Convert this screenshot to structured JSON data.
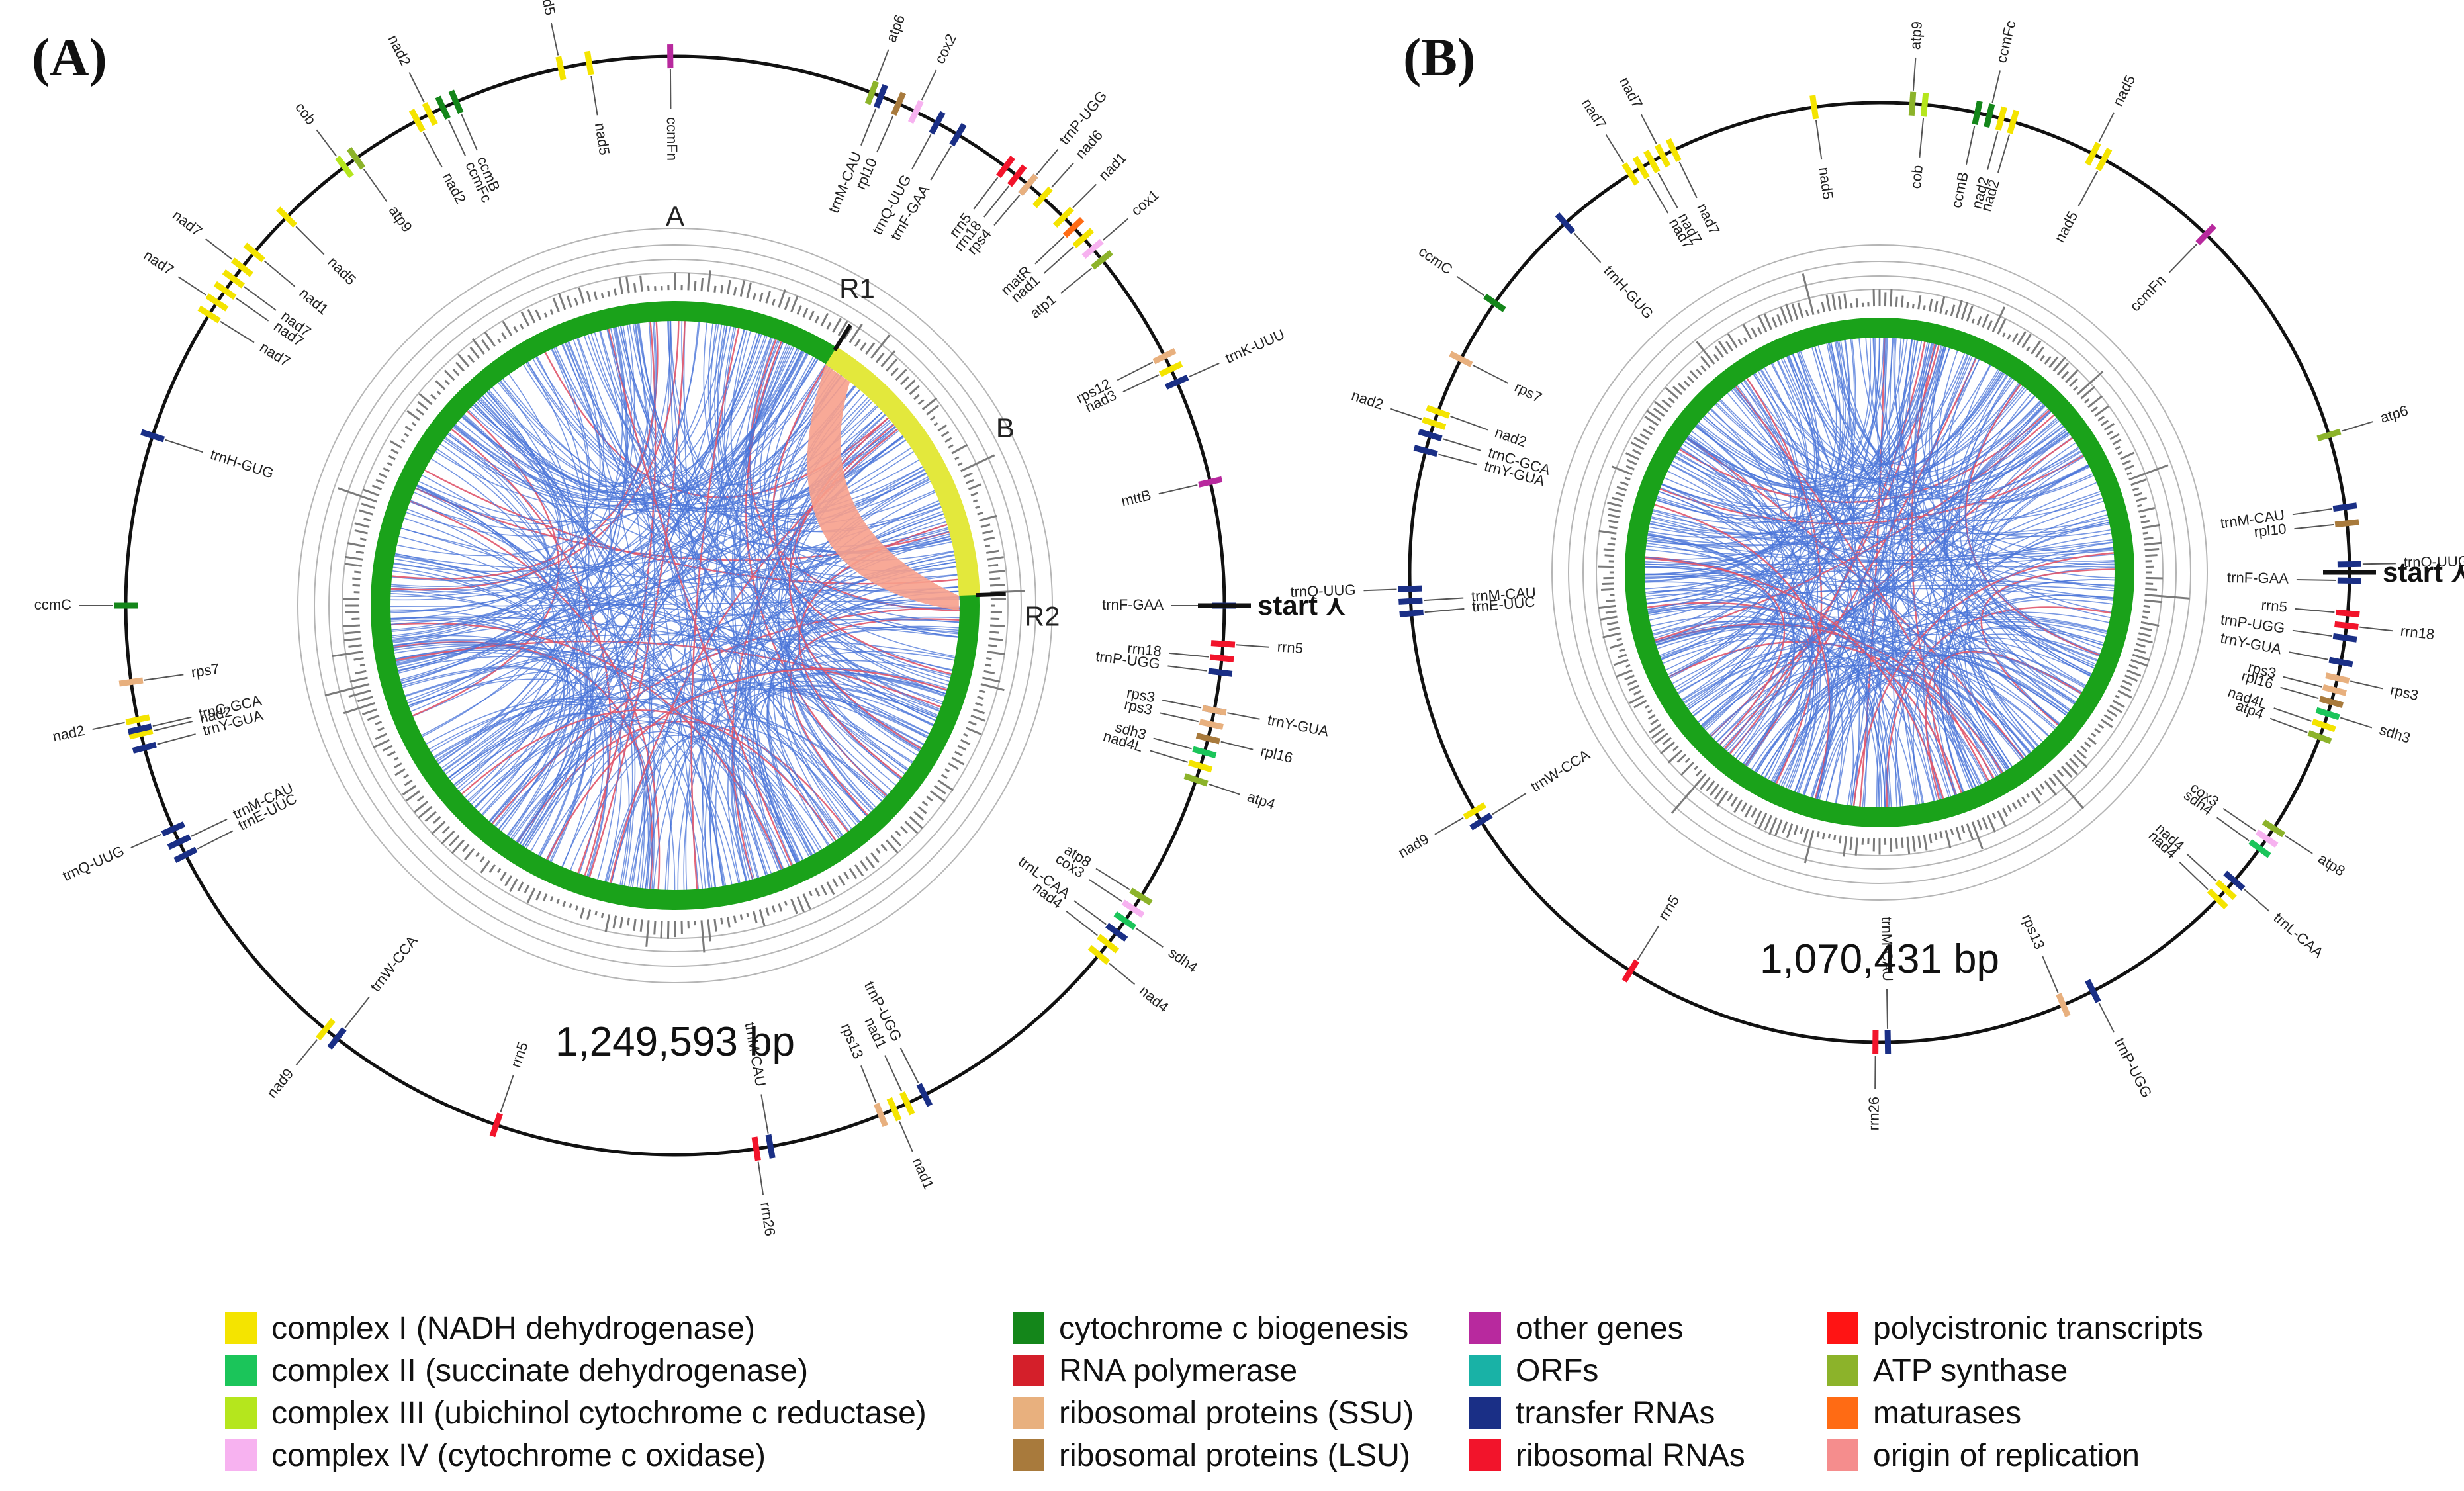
{
  "panels": [
    {
      "label": "(A)",
      "size_label": "1,249,593 bp",
      "start_label": "start",
      "start_glyph": "⋏",
      "region_labels": [
        "A",
        "B",
        "R1",
        "R2"
      ],
      "genes": [
        {
          "name": "nad5",
          "angle": -12,
          "cat": "complexI"
        },
        {
          "name": "nad5",
          "angle": -9,
          "cat": "complexI"
        },
        {
          "name": "ccmFn",
          "angle": -0.5,
          "cat": "other"
        },
        {
          "name": "atp6",
          "angle": 21,
          "cat": "atp"
        },
        {
          "name": "rrn5",
          "angle": 37,
          "cat": "rrna"
        },
        {
          "name": "rrn18",
          "angle": 38.5,
          "cat": "rrna"
        },
        {
          "name": "trnP-UGG",
          "angle": 40,
          "cat": "trna"
        },
        {
          "name": "trnM-CAU",
          "angle": 22,
          "cat": "trna"
        },
        {
          "name": "rpl10",
          "angle": 24,
          "cat": "rpl"
        },
        {
          "name": "cox2",
          "angle": 26,
          "cat": "complexIV"
        },
        {
          "name": "trnQ-UUG",
          "angle": 28.5,
          "cat": "trna"
        },
        {
          "name": "trnF-GAA",
          "angle": 31,
          "cat": "trna"
        },
        {
          "name": "nad1",
          "angle": 45,
          "cat": "complexI"
        },
        {
          "name": "matR",
          "angle": 46.5,
          "cat": "maturase"
        },
        {
          "name": "nad1",
          "angle": 48,
          "cat": "complexI"
        },
        {
          "name": "cox1",
          "angle": 49.5,
          "cat": "complexIV"
        },
        {
          "name": "atp1",
          "angle": 51,
          "cat": "atp"
        },
        {
          "name": "rps4",
          "angle": 40,
          "cat": "rps"
        },
        {
          "name": "nad6",
          "angle": 42,
          "cat": "complexI"
        },
        {
          "name": "rps12",
          "angle": 63,
          "cat": "rps"
        },
        {
          "name": "nad3",
          "angle": 64.5,
          "cat": "complexI"
        },
        {
          "name": "trnK-UUU",
          "angle": 66,
          "cat": "trna"
        },
        {
          "name": "mttB",
          "angle": 77,
          "cat": "other"
        },
        {
          "name": "trnF-GAA",
          "angle": 90,
          "cat": "trna"
        },
        {
          "name": "rrn5",
          "angle": 94,
          "cat": "rrna"
        },
        {
          "name": "rrn18",
          "angle": 95.5,
          "cat": "rrna"
        },
        {
          "name": "trnP-UGG",
          "angle": 97,
          "cat": "trna"
        },
        {
          "name": "trnY-GUA",
          "angle": 101,
          "cat": "trna"
        },
        {
          "name": "rps3",
          "angle": 101,
          "cat": "rps"
        },
        {
          "name": "rps3",
          "angle": 102.5,
          "cat": "rps"
        },
        {
          "name": "rpl16",
          "angle": 104,
          "cat": "rpl"
        },
        {
          "name": "sdh3",
          "angle": 105.5,
          "cat": "complexII"
        },
        {
          "name": "nad4L",
          "angle": 107,
          "cat": "complexI"
        },
        {
          "name": "atp4",
          "angle": 108.5,
          "cat": "atp"
        },
        {
          "name": "atp8",
          "angle": 122,
          "cat": "atp"
        },
        {
          "name": "cox3",
          "angle": 123.5,
          "cat": "complexIV"
        },
        {
          "name": "sdh4",
          "angle": 125,
          "cat": "complexII"
        },
        {
          "name": "trnL-CAA",
          "angle": 126.5,
          "cat": "trna"
        },
        {
          "name": "nad4",
          "angle": 128,
          "cat": "complexI"
        },
        {
          "name": "nad4",
          "angle": 129.5,
          "cat": "complexI"
        },
        {
          "name": "trnP-UGG",
          "angle": 153,
          "cat": "trna"
        },
        {
          "name": "nad1",
          "angle": 155,
          "cat": "complexI"
        },
        {
          "name": "nad1",
          "angle": 156.5,
          "cat": "complexI"
        },
        {
          "name": "rps13",
          "angle": 158,
          "cat": "rps"
        },
        {
          "name": "trnM-CAU",
          "angle": 170,
          "cat": "trna"
        },
        {
          "name": "rrn26",
          "angle": 171.5,
          "cat": "rrna"
        },
        {
          "name": "rrn5",
          "angle": 199,
          "cat": "rrna"
        },
        {
          "name": "trnW-CCA",
          "angle": 218,
          "cat": "trna"
        },
        {
          "name": "nad9",
          "angle": 219.5,
          "cat": "complexI"
        },
        {
          "name": "trnE-UUC",
          "angle": 243,
          "cat": "trna"
        },
        {
          "name": "trnM-CAU",
          "angle": 244.5,
          "cat": "trna"
        },
        {
          "name": "trnQ-UUG",
          "angle": 246,
          "cat": "trna"
        },
        {
          "name": "trnY-GUA",
          "angle": 255,
          "cat": "trna"
        },
        {
          "name": "nad2",
          "angle": 256.5,
          "cat": "complexI"
        },
        {
          "name": "nad2",
          "angle": 258,
          "cat": "complexI"
        },
        {
          "name": "trnC-GCA",
          "angle": 257,
          "cat": "trna"
        },
        {
          "name": "rps7",
          "angle": 262,
          "cat": "rps"
        },
        {
          "name": "ccmC",
          "angle": 270,
          "cat": "ccm"
        },
        {
          "name": "trnH-GUG",
          "angle": 288,
          "cat": "trna"
        },
        {
          "name": "nad7",
          "angle": 302,
          "cat": "complexI"
        },
        {
          "name": "nad7",
          "angle": 303.5,
          "cat": "complexI"
        },
        {
          "name": "nad7",
          "angle": 305,
          "cat": "complexI"
        },
        {
          "name": "nad7",
          "angle": 306.5,
          "cat": "complexI"
        },
        {
          "name": "nad7",
          "angle": 308,
          "cat": "complexI"
        },
        {
          "name": "nad1",
          "angle": 310,
          "cat": "complexI"
        },
        {
          "name": "nad5",
          "angle": 315,
          "cat": "complexI"
        },
        {
          "name": "cob",
          "angle": 323,
          "cat": "complexIII"
        },
        {
          "name": "atp9",
          "angle": 324.5,
          "cat": "atp"
        },
        {
          "name": "nad2",
          "angle": 332,
          "cat": "complexI"
        },
        {
          "name": "nad2",
          "angle": 333.5,
          "cat": "complexI"
        },
        {
          "name": "ccmFc",
          "angle": 335,
          "cat": "ccm"
        },
        {
          "name": "ccmB",
          "angle": 336.5,
          "cat": "ccm"
        }
      ]
    },
    {
      "label": "(B)",
      "size_label": "1,070,431 bp",
      "start_label": "start",
      "start_glyph": "⋏",
      "genes": [
        {
          "name": "nad7",
          "angle": -32,
          "cat": "complexI"
        },
        {
          "name": "nad7",
          "angle": -30.5,
          "cat": "complexI"
        },
        {
          "name": "nad7",
          "angle": -29,
          "cat": "complexI"
        },
        {
          "name": "nad7",
          "angle": -27.5,
          "cat": "complexI"
        },
        {
          "name": "nad7",
          "angle": -26,
          "cat": "complexI"
        },
        {
          "name": "nad5",
          "angle": -8,
          "cat": "complexI"
        },
        {
          "name": "nad5",
          "angle": 27,
          "cat": "complexI"
        },
        {
          "name": "nad5",
          "angle": 28.5,
          "cat": "complexI"
        },
        {
          "name": "ccmFn",
          "angle": 44,
          "cat": "other"
        },
        {
          "name": "atp9",
          "angle": 4,
          "cat": "atp"
        },
        {
          "name": "cob",
          "angle": 5.5,
          "cat": "complexIII"
        },
        {
          "name": "ccmB",
          "angle": 12,
          "cat": "ccm"
        },
        {
          "name": "ccmFc",
          "angle": 13.5,
          "cat": "ccm"
        },
        {
          "name": "nad2",
          "angle": 15,
          "cat": "complexI"
        },
        {
          "name": "nad2",
          "angle": 16.5,
          "cat": "complexI"
        },
        {
          "name": "atp6",
          "angle": 73,
          "cat": "atp"
        },
        {
          "name": "trnM-CAU",
          "angle": 82,
          "cat": "trna"
        },
        {
          "name": "rpl10",
          "angle": 84,
          "cat": "rpl"
        },
        {
          "name": "trnQ-UUG",
          "angle": 89,
          "cat": "trna"
        },
        {
          "name": "trnF-GAA",
          "angle": 91,
          "cat": "trna"
        },
        {
          "name": "rrn5",
          "angle": 95,
          "cat": "rrna"
        },
        {
          "name": "rrn18",
          "angle": 96.5,
          "cat": "rrna"
        },
        {
          "name": "trnP-UGG",
          "angle": 98,
          "cat": "trna"
        },
        {
          "name": "trnY-GUA",
          "angle": 101,
          "cat": "trna"
        },
        {
          "name": "rps3",
          "angle": 103,
          "cat": "rps"
        },
        {
          "name": "rps3",
          "angle": 104.5,
          "cat": "rps"
        },
        {
          "name": "rpl16",
          "angle": 106,
          "cat": "rpl"
        },
        {
          "name": "sdh3",
          "angle": 107.5,
          "cat": "complexII"
        },
        {
          "name": "nad4L",
          "angle": 109,
          "cat": "complexI"
        },
        {
          "name": "atp4",
          "angle": 110.5,
          "cat": "atp"
        },
        {
          "name": "atp8",
          "angle": 123,
          "cat": "atp"
        },
        {
          "name": "cox3",
          "angle": 124.5,
          "cat": "complexIV"
        },
        {
          "name": "sdh4",
          "angle": 126,
          "cat": "complexII"
        },
        {
          "name": "trnL-CAA",
          "angle": 131,
          "cat": "trna"
        },
        {
          "name": "nad4",
          "angle": 132.5,
          "cat": "complexI"
        },
        {
          "name": "nad4",
          "angle": 134,
          "cat": "complexI"
        },
        {
          "name": "trnP-UGG",
          "angle": 153,
          "cat": "trna"
        },
        {
          "name": "rps13",
          "angle": 157,
          "cat": "rps"
        },
        {
          "name": "trnM-CAU",
          "angle": 179,
          "cat": "trna"
        },
        {
          "name": "rrn26",
          "angle": 180.5,
          "cat": "rrna"
        },
        {
          "name": "rrn5",
          "angle": 212,
          "cat": "rrna"
        },
        {
          "name": "trnW-CCA",
          "angle": 238,
          "cat": "trna"
        },
        {
          "name": "nad9",
          "angle": 239.5,
          "cat": "complexI"
        },
        {
          "name": "trnE-UUC",
          "angle": 265,
          "cat": "trna"
        },
        {
          "name": "trnM-CAU",
          "angle": 266.5,
          "cat": "trna"
        },
        {
          "name": "trnQ-UUG",
          "angle": 268,
          "cat": "trna"
        },
        {
          "name": "trnY-GUA",
          "angle": 285,
          "cat": "trna"
        },
        {
          "name": "trnC-GCA",
          "angle": 287,
          "cat": "trna"
        },
        {
          "name": "nad2",
          "angle": 288.5,
          "cat": "complexI"
        },
        {
          "name": "nad2",
          "angle": 290,
          "cat": "complexI"
        },
        {
          "name": "rps7",
          "angle": 297,
          "cat": "rps"
        },
        {
          "name": "ccmC",
          "angle": 305,
          "cat": "ccm"
        },
        {
          "name": "trnH-GUG",
          "angle": 318,
          "cat": "trna"
        }
      ]
    }
  ],
  "colors": {
    "complexI": "#f4e400",
    "complexII": "#1bc55a",
    "complexIII": "#b5e61d",
    "complexIV": "#f7b2f0",
    "ccm": "#14861a",
    "rnapol": "#d41f2a",
    "rps": "#e8b07e",
    "rpl": "#a87a3c",
    "other": "#b8299e",
    "orf": "#19b2a6",
    "trna": "#1a2f86",
    "rrna": "#f2142b",
    "polycis": "#ff1414",
    "atp": "#8cb32a",
    "maturase": "#ff6b14",
    "ori": "#f58d8d",
    "ring": "#1aa21a",
    "chord_blue": "#4a74d8",
    "chord_red": "#e0556a",
    "repeat_fill": "#f7a08c",
    "repeat_arc": "#e3e83c"
  },
  "legend": [
    [
      {
        "label": "complex I (NADH dehydrogenase)",
        "color": "#f4e400"
      },
      {
        "label": "complex II (succinate dehydrogenase)",
        "color": "#1bc55a"
      },
      {
        "label": "complex III (ubichinol cytochrome c reductase)",
        "color": "#b5e61d"
      },
      {
        "label": "complex IV (cytochrome c oxidase)",
        "color": "#f7b2f0"
      }
    ],
    [
      {
        "label": "cytochrome c biogenesis",
        "color": "#14861a"
      },
      {
        "label": "RNA polymerase",
        "color": "#d41f2a"
      },
      {
        "label": "ribosomal proteins (SSU)",
        "color": "#e8b07e"
      },
      {
        "label": "ribosomal proteins (LSU)",
        "color": "#a87a3c"
      }
    ],
    [
      {
        "label": "other genes",
        "color": "#b8299e"
      },
      {
        "label": "ORFs",
        "color": "#19b2a6"
      },
      {
        "label": "transfer RNAs",
        "color": "#1a2f86"
      },
      {
        "label": "ribosomal RNAs",
        "color": "#f2142b"
      }
    ],
    [
      {
        "label": "polycistronic transcripts",
        "color": "#ff1414"
      },
      {
        "label": "ATP synthase",
        "color": "#8cb32a"
      },
      {
        "label": "maturases",
        "color": "#ff6b14"
      },
      {
        "label": "origin of replication",
        "color": "#f58d8d"
      }
    ]
  ]
}
